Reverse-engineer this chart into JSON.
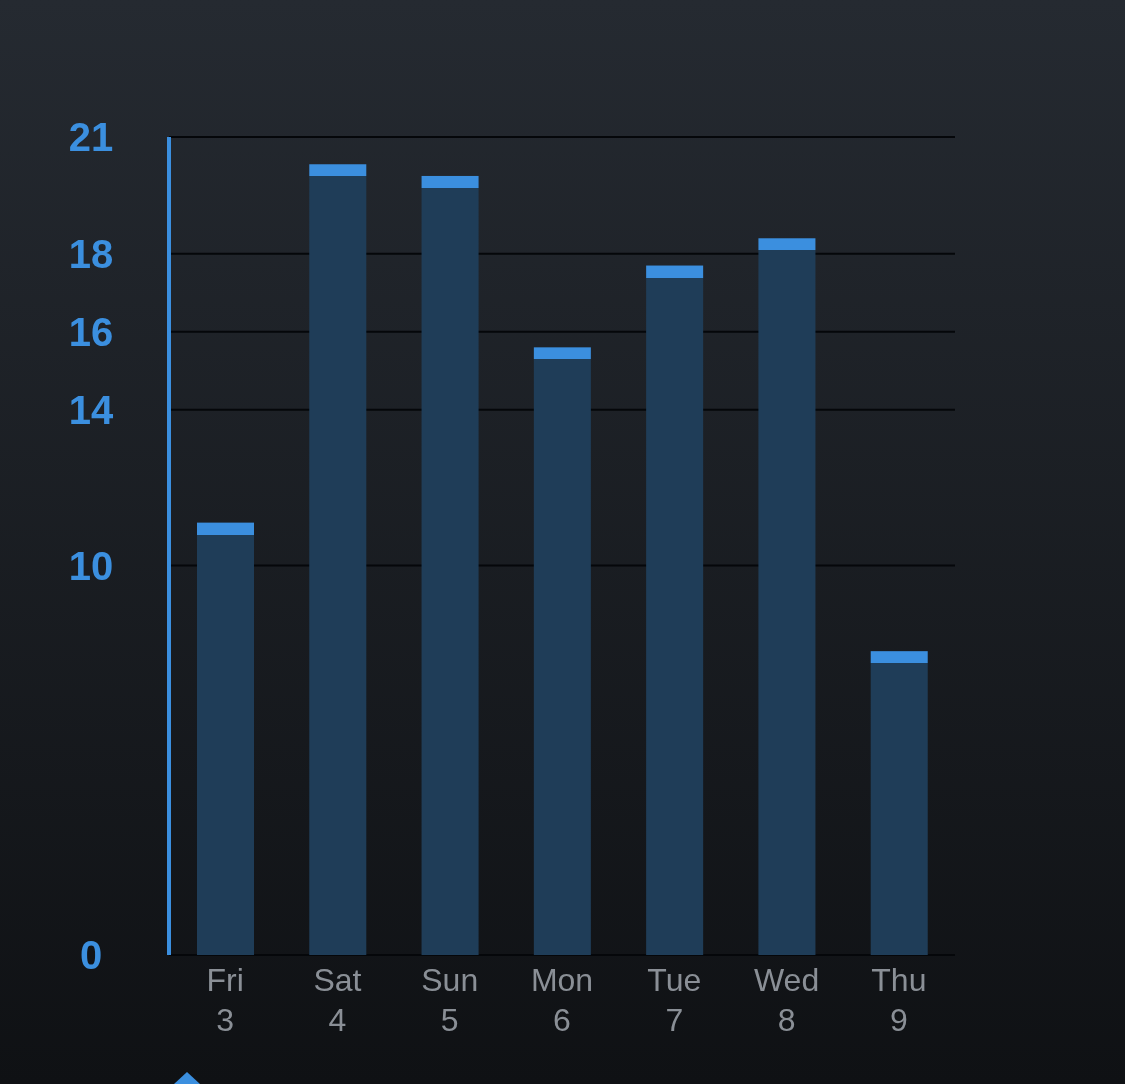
{
  "chart_data": {
    "type": "bar",
    "categories": [
      "Fri 3",
      "Sat 4",
      "Sun 5",
      "Mon 6",
      "Tue 7",
      "Wed 8",
      "Thu 9"
    ],
    "values": [
      11.1,
      20.3,
      20,
      15.6,
      17.7,
      18.4,
      7.8
    ],
    "color": "#1f3d58",
    "ylim": [
      0,
      21
    ],
    "yticks": [
      0,
      10,
      14,
      16,
      18,
      21
    ],
    "grid": "y"
  }
}
